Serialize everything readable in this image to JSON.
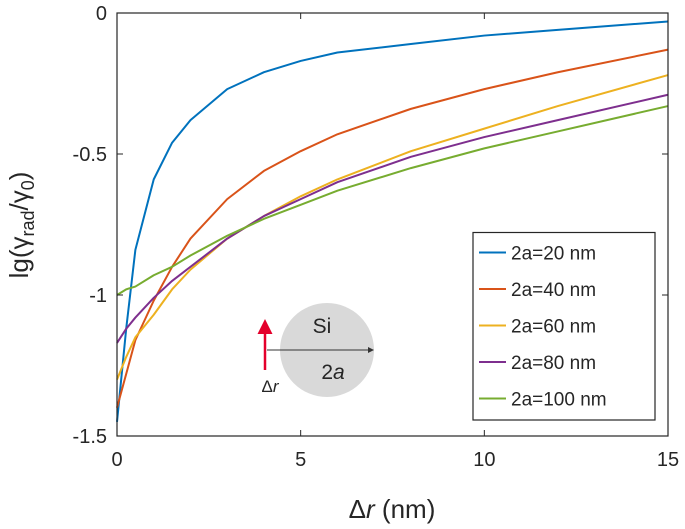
{
  "chart_data": {
    "type": "line",
    "ylabel_parts": [
      "lg(γ",
      "rad",
      "/γ",
      "0",
      ")"
    ],
    "xlabel_parts": [
      "Δ",
      "r",
      " (nm)"
    ],
    "x": [
      0,
      0.25,
      0.5,
      1,
      1.5,
      2,
      3,
      4,
      5,
      6,
      8,
      10,
      12,
      15
    ],
    "series": [
      {
        "name": "2a=20 nm",
        "color": "#0072bd",
        "values": [
          -1.45,
          -1.12,
          -0.84,
          -0.59,
          -0.46,
          -0.38,
          -0.27,
          -0.21,
          -0.17,
          -0.14,
          -0.11,
          -0.08,
          -0.06,
          -0.03
        ]
      },
      {
        "name": "2a=40 nm",
        "color": "#d95319",
        "values": [
          -1.4,
          -1.28,
          -1.16,
          -1.02,
          -0.9,
          -0.8,
          -0.66,
          -0.56,
          -0.49,
          -0.43,
          -0.34,
          -0.27,
          -0.21,
          -0.13
        ]
      },
      {
        "name": "2a=60 nm",
        "color": "#edb120",
        "values": [
          -1.3,
          -1.22,
          -1.15,
          -1.07,
          -0.98,
          -0.91,
          -0.8,
          -0.72,
          -0.65,
          -0.59,
          -0.49,
          -0.41,
          -0.33,
          -0.22
        ]
      },
      {
        "name": "2a=80 nm",
        "color": "#7e2f8e",
        "values": [
          -1.17,
          -1.12,
          -1.08,
          -1.01,
          -0.95,
          -0.9,
          -0.8,
          -0.72,
          -0.66,
          -0.6,
          -0.51,
          -0.44,
          -0.38,
          -0.29
        ]
      },
      {
        "name": "2a=100 nm",
        "color": "#77ac30",
        "values": [
          -1.0,
          -0.98,
          -0.97,
          -0.93,
          -0.9,
          -0.86,
          -0.79,
          -0.73,
          -0.68,
          -0.63,
          -0.55,
          -0.48,
          -0.42,
          -0.33
        ]
      }
    ],
    "xlim": [
      0,
      15
    ],
    "xticks": [
      0,
      5,
      10,
      15
    ],
    "ylim": [
      -1.5,
      0
    ],
    "yticks": [
      -1.5,
      -1,
      -0.5,
      0
    ],
    "legend": "lower right",
    "inset": {
      "material": "Si",
      "diameter_parts": [
        "2",
        "a"
      ],
      "offset_parts": [
        "Δ",
        "r"
      ]
    }
  }
}
